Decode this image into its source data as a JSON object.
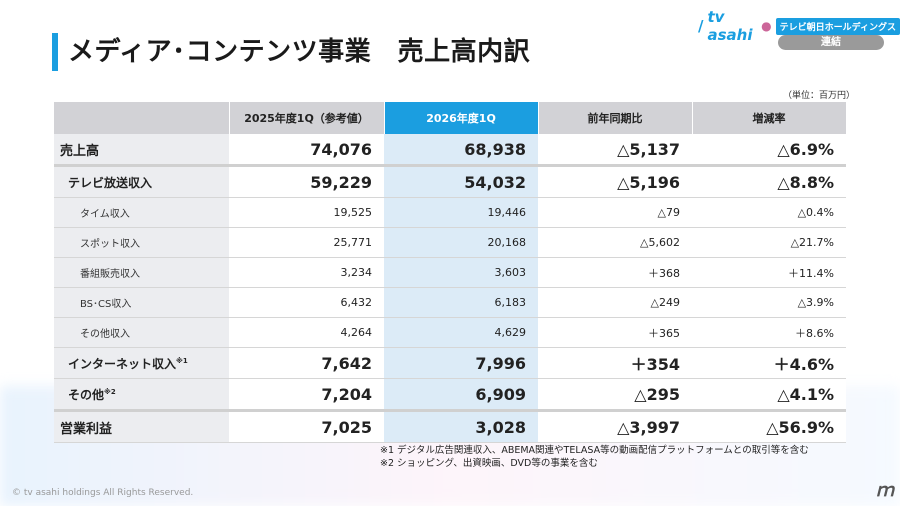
{
  "title": "メディア･コンテンツ事業　売上高内訳",
  "logo": {
    "brand": "tv asahi",
    "holdings": "テレビ朝日ホールディングス"
  },
  "badge": "連結",
  "unit": "（単位：百万円）",
  "table": {
    "headers": [
      "",
      "2025年度1Q（参考値）",
      "2026年度1Q",
      "前年同期比",
      "増減率"
    ],
    "rows": [
      {
        "label": "売上高",
        "note": "",
        "c1": "74,076",
        "c2": "68,938",
        "c3": "△5,137",
        "c4": "△6.9%"
      },
      {
        "label": "テレビ放送収入",
        "note": "",
        "c1": "59,229",
        "c2": "54,032",
        "c3": "△5,196",
        "c4": "△8.8%"
      },
      {
        "label": "タイム収入",
        "note": "",
        "c1": "19,525",
        "c2": "19,446",
        "c3": "△79",
        "c4": "△0.4%"
      },
      {
        "label": "スポット収入",
        "note": "",
        "c1": "25,771",
        "c2": "20,168",
        "c3": "△5,602",
        "c4": "△21.7%"
      },
      {
        "label": "番組販売収入",
        "note": "",
        "c1": "3,234",
        "c2": "3,603",
        "c3": "＋368",
        "c4": "＋11.4%"
      },
      {
        "label": "BS･CS収入",
        "note": "",
        "c1": "6,432",
        "c2": "6,183",
        "c3": "△249",
        "c4": "△3.9%"
      },
      {
        "label": "その他収入",
        "note": "",
        "c1": "4,264",
        "c2": "4,629",
        "c3": "＋365",
        "c4": "＋8.6%"
      },
      {
        "label": "インターネット収入",
        "note": "※1",
        "c1": "7,642",
        "c2": "7,996",
        "c3": "＋354",
        "c4": "＋4.6%"
      },
      {
        "label": "その他",
        "note": "※2",
        "c1": "7,204",
        "c2": "6,909",
        "c3": "△295",
        "c4": "△4.1%"
      },
      {
        "label": "営業利益",
        "note": "",
        "c1": "7,025",
        "c2": "3,028",
        "c3": "△3,997",
        "c4": "△56.9%"
      }
    ]
  },
  "notes": [
    "※1 デジタル広告関連収入、ABEMA関連やTELASA等の動画配信プラットフォームとの取引等を含む",
    "※2 ショッピング、出資映画、DVD等の事業を含む"
  ],
  "copyright": "© tv asahi holdings All Rights Reserved.",
  "colors": {
    "accent": "#1a9ee0",
    "header_gray": "#d2d2d6",
    "highlight_col": "#dcebf7"
  }
}
